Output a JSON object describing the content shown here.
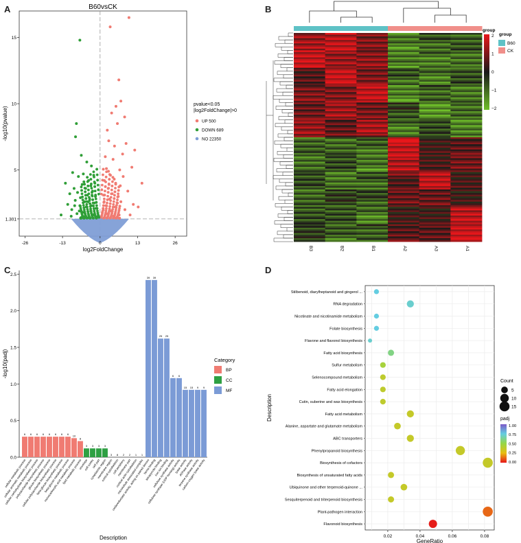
{
  "panels": {
    "A": {
      "letter": "A"
    },
    "B": {
      "letter": "B"
    },
    "C": {
      "letter": "C"
    },
    "D": {
      "letter": "D"
    }
  },
  "chart_data": [
    {
      "type": "scatter",
      "panel": "A",
      "title": "B60vsCK",
      "xlabel": "log2FoldChange",
      "ylabel": "-log10(pvalue)",
      "xlim": [
        -28,
        30
      ],
      "ylim": [
        0,
        17
      ],
      "xticks": [
        "-26",
        "-13",
        "0",
        "13",
        "26"
      ],
      "yticks": [
        "1.301",
        "5",
        "10",
        "15"
      ],
      "threshold_line_y": 1.301,
      "threshold_line_x": 0,
      "legend": {
        "title_line1": "pvalue<0.05",
        "title_line2": "|log2FoldChange|>0",
        "entries": [
          {
            "label": "UP 500",
            "color": "#f07b72"
          },
          {
            "label": "DOWN 689",
            "color": "#2f9e37"
          },
          {
            "label": "NO 22350",
            "color": "#7f9ed6"
          }
        ]
      },
      "series": [
        {
          "name": "UP 500",
          "color": "#f07b72",
          "points": [
            [
              3.5,
              15.8
            ],
            [
              10,
              16.5
            ],
            [
              6.5,
              11.8
            ],
            [
              5.5,
              9.8
            ],
            [
              7.2,
              10.2
            ],
            [
              8.5,
              9.0
            ],
            [
              4.0,
              9.3
            ],
            [
              6.0,
              8.5
            ],
            [
              2.5,
              8.0
            ],
            [
              3.0,
              7.2
            ],
            [
              9.0,
              7.0
            ],
            [
              12.0,
              6.5
            ],
            [
              5.0,
              6.8
            ],
            [
              7.8,
              6.2
            ],
            [
              1.8,
              6.0
            ],
            [
              4.5,
              5.8
            ],
            [
              11.0,
              5.2
            ],
            [
              6.8,
              5.0
            ],
            [
              2.2,
              5.1
            ],
            [
              3.6,
              4.6
            ],
            [
              8.0,
              4.5
            ],
            [
              14.5,
              4.0
            ],
            [
              1.5,
              4.2
            ],
            [
              5.4,
              4.0
            ],
            [
              2.8,
              3.6
            ],
            [
              9.6,
              3.4
            ],
            [
              4.2,
              3.2
            ],
            [
              6.3,
              3.0
            ],
            [
              1.2,
              3.1
            ],
            [
              3.3,
              2.8
            ],
            [
              7.2,
              2.6
            ],
            [
              11.5,
              2.4
            ],
            [
              2.0,
              2.3
            ],
            [
              5.2,
              2.2
            ],
            [
              1.1,
              2.0
            ],
            [
              8.6,
              2.0
            ],
            [
              3.7,
              1.9
            ],
            [
              2.4,
              1.7
            ],
            [
              6.6,
              1.6
            ],
            [
              4.7,
              1.5
            ],
            [
              1.6,
              1.45
            ],
            [
              10.4,
              1.6
            ],
            [
              13.2,
              2.2
            ],
            [
              0.8,
              1.8
            ],
            [
              2.9,
              4.9
            ],
            [
              4.9,
              4.3
            ],
            [
              7.0,
              3.8
            ],
            [
              3.1,
              3.9
            ],
            [
              1.4,
              2.6
            ],
            [
              6.0,
              2.5
            ]
          ]
        },
        {
          "name": "DOWN 689",
          "color": "#2f9e37",
          "points": [
            [
              -7,
              14.8
            ],
            [
              -8.2,
              8.5
            ],
            [
              -8.5,
              7.5
            ],
            [
              -6.5,
              6.1
            ],
            [
              -4.6,
              5.6
            ],
            [
              -3.0,
              5.3
            ],
            [
              -9.5,
              4.8
            ],
            [
              -5.8,
              4.7
            ],
            [
              -2.2,
              4.6
            ],
            [
              -7.5,
              4.5
            ],
            [
              -4.0,
              4.2
            ],
            [
              -12,
              4.0
            ],
            [
              -1.8,
              4.0
            ],
            [
              -6.2,
              3.9
            ],
            [
              -3.2,
              3.8
            ],
            [
              -9.0,
              3.6
            ],
            [
              -5.0,
              3.6
            ],
            [
              -2.6,
              3.4
            ],
            [
              -7.8,
              3.3
            ],
            [
              -10.5,
              3.2
            ],
            [
              -4.4,
              3.1
            ],
            [
              -1.6,
              3.0
            ],
            [
              -6.8,
              2.9
            ],
            [
              -3.6,
              2.8
            ],
            [
              -8.6,
              2.7
            ],
            [
              -5.4,
              2.6
            ],
            [
              -2.0,
              2.5
            ],
            [
              -11.2,
              2.4
            ],
            [
              -7.0,
              2.3
            ],
            [
              -4.8,
              2.2
            ],
            [
              -1.4,
              2.1
            ],
            [
              -9.8,
              2.0
            ],
            [
              -3.2,
              1.9
            ],
            [
              -6.0,
              1.8
            ],
            [
              -8.0,
              1.7
            ],
            [
              -2.4,
              1.6
            ],
            [
              -5.2,
              1.5
            ],
            [
              -13.5,
              1.6
            ],
            [
              -1.2,
              1.45
            ],
            [
              -4.0,
              1.4
            ],
            [
              -6.6,
              1.4
            ],
            [
              -10.0,
              1.5
            ],
            [
              -3.0,
              2.3
            ],
            [
              -7.2,
              1.9
            ],
            [
              -2.8,
              3.1
            ],
            [
              -5.6,
              4.1
            ],
            [
              -4.2,
              2.6
            ],
            [
              -8.8,
              2.3
            ]
          ]
        }
      ],
      "no_cloud": {
        "name": "NO 22350",
        "color": "#7f9ed6",
        "x_range": [
          -10,
          10
        ],
        "y_max": 1.301
      }
    },
    {
      "type": "heatmap",
      "panel": "B",
      "columns": [
        "B3",
        "B2",
        "B1",
        "A2",
        "A3",
        "A1"
      ],
      "column_groups": [
        "B60",
        "B60",
        "B60",
        "CK",
        "CK",
        "CK"
      ],
      "group_colors": {
        "B60": "#5ec2c6",
        "CK": "#f08f8a"
      },
      "legend_group_title": "group",
      "legend_groups": [
        "B60",
        "CK"
      ],
      "colorbar": {
        "ticks": [
          "2",
          "1",
          "0",
          "−1",
          "−2"
        ],
        "range": [
          -2,
          2
        ],
        "low": "#6fbf2a",
        "mid": "#1a1a1a",
        "high": "#e8171b"
      },
      "row_blocks": [
        {
          "weight": 2,
          "values": [
            1.4,
            1.6,
            0.9,
            -1.2,
            -0.8,
            -0.6
          ]
        },
        {
          "weight": 2,
          "values": [
            1.8,
            1.2,
            1.0,
            -1.3,
            -1.0,
            -0.9
          ]
        },
        {
          "weight": 2,
          "values": [
            0.6,
            1.7,
            0.8,
            -0.8,
            -1.1,
            -0.5
          ]
        },
        {
          "weight": 2,
          "values": [
            1.0,
            0.9,
            1.5,
            -1.4,
            -0.7,
            -1.0
          ]
        },
        {
          "weight": 2,
          "values": [
            0.8,
            1.2,
            0.7,
            -0.5,
            -1.3,
            -0.9
          ]
        },
        {
          "weight": 2,
          "values": [
            1.2,
            0.6,
            1.2,
            -1.0,
            -0.4,
            -1.2
          ]
        },
        {
          "weight": 2,
          "values": [
            -0.8,
            -1.0,
            -0.9,
            1.8,
            0.4,
            0.6
          ]
        },
        {
          "weight": 2,
          "values": [
            -1.0,
            -0.7,
            -1.2,
            1.6,
            0.5,
            0.8
          ]
        },
        {
          "weight": 2,
          "values": [
            -0.6,
            -1.2,
            -0.8,
            0.6,
            1.7,
            0.3
          ]
        },
        {
          "weight": 2,
          "values": [
            -0.9,
            -0.5,
            -0.7,
            0.9,
            0.8,
            0.2
          ]
        },
        {
          "weight": 2,
          "values": [
            -0.7,
            -0.8,
            -1.1,
            0.4,
            0.3,
            1.5
          ]
        },
        {
          "weight": 2,
          "values": [
            -0.5,
            -0.9,
            -0.6,
            0.7,
            0.6,
            1.7
          ]
        }
      ]
    },
    {
      "type": "bar",
      "panel": "C",
      "xlabel": "Description",
      "ylabel": "-log10(padj)",
      "ylim": [
        0,
        2.55
      ],
      "yticks": [
        "0.0",
        "0.5",
        "1.0",
        "1.5",
        "2.0",
        "2.5"
      ],
      "legend": {
        "title": "Category",
        "entries": [
          {
            "label": "BP",
            "color": "#f07b72"
          },
          {
            "label": "CC",
            "color": "#2ea043"
          },
          {
            "label": "MF",
            "color": "#7b9bd6"
          }
        ]
      },
      "bars": [
        {
          "label": "cellular metabolic process",
          "value": 0.28,
          "count": "6",
          "category": "BP"
        },
        {
          "label": "cellular aromatic metabolic process",
          "value": 0.28,
          "count": "6",
          "category": "BP"
        },
        {
          "label": "cellular carbohydrate biosynthetic process",
          "value": 0.28,
          "count": "6",
          "category": "BP"
        },
        {
          "label": "polysaccharide biosynthetic process",
          "value": 0.28,
          "count": "6",
          "category": "BP"
        },
        {
          "label": "glucan biosynthetic process",
          "value": 0.28,
          "count": "6",
          "category": "BP"
        },
        {
          "label": "cellular polysaccharide biosynthetic process",
          "value": 0.28,
          "count": "6",
          "category": "BP"
        },
        {
          "label": "beta-glucan biosynthetic process",
          "value": 0.28,
          "count": "6",
          "category": "BP"
        },
        {
          "label": "beta-glucan metabolic process",
          "value": 0.28,
          "count": "6",
          "category": "BP"
        },
        {
          "label": "monocarboxylic acid metabolic process",
          "value": 0.26,
          "count": "10",
          "category": "BP"
        },
        {
          "label": "lipid metabolic process",
          "value": 0.22,
          "count": "8",
          "category": "BP"
        },
        {
          "label": "envelope",
          "value": 0.12,
          "count": "3",
          "category": "CC"
        },
        {
          "label": "cell cortex",
          "value": 0.12,
          "count": "3",
          "category": "CC"
        },
        {
          "label": "cell part",
          "value": 0.12,
          "count": "3",
          "category": "CC"
        },
        {
          "label": "cytoplasmic region",
          "value": 0.12,
          "count": "3",
          "category": "CC"
        },
        {
          "label": "membrane region",
          "value": 0.0,
          "count": "3",
          "category": "CC"
        },
        {
          "label": "cortical cytoskeleton",
          "value": 0.0,
          "count": "8",
          "category": "CC"
        },
        {
          "label": "cell periphery",
          "value": 0.0,
          "count": "2",
          "category": "CC"
        },
        {
          "label": "membrane part",
          "value": 0.0,
          "count": "2",
          "category": "CC"
        },
        {
          "label": "cortical actin cytoskeleton",
          "value": 0.0,
          "count": "1",
          "category": "CC"
        },
        {
          "label": "microtubule associated complex",
          "value": 0.0,
          "count": "1",
          "category": "CC"
        },
        {
          "label": "oxidoreductase activity, acting on paired donors",
          "value": 2.42,
          "count": "39",
          "category": "MF"
        },
        {
          "label": "heme binding",
          "value": 2.42,
          "count": "39",
          "category": "MF"
        },
        {
          "label": "tetrapyrrole binding",
          "value": 1.62,
          "count": "25",
          "category": "MF"
        },
        {
          "label": "iron ion binding",
          "value": 1.62,
          "count": "25",
          "category": "MF"
        },
        {
          "label": "cellulose synthase activity",
          "value": 1.08,
          "count": "6",
          "category": "MF"
        },
        {
          "label": "cellulose synthase (UDP-forming) activity",
          "value": 1.08,
          "count": "6",
          "category": "MF"
        },
        {
          "label": "lyase activity",
          "value": 0.92,
          "count": "15",
          "category": "MF"
        },
        {
          "label": "ATPase activity",
          "value": 0.92,
          "count": "15",
          "category": "MF"
        },
        {
          "label": "terpene synthase activity",
          "value": 0.92,
          "count": "9",
          "category": "MF"
        },
        {
          "label": "carbon-oxygen lyase activity",
          "value": 0.92,
          "count": "9",
          "category": "MF"
        }
      ]
    },
    {
      "type": "scatter",
      "panel": "D",
      "xlabel": "GeneRatio",
      "ylabel": "Description",
      "xlim": [
        0.006,
        0.086
      ],
      "xticks": [
        0.02,
        0.04,
        0.06,
        0.08
      ],
      "xtick_labels": [
        "0.02",
        "0.04",
        "0.06",
        "0.08"
      ],
      "legend": {
        "count_title": "Count",
        "count_entries": [
          {
            "label": "5",
            "value": 5
          },
          {
            "label": "10",
            "value": 10
          },
          {
            "label": "15",
            "value": 15
          }
        ],
        "padj_title": "padj",
        "padj_ticks": [
          "1.00",
          "0.75",
          "0.50",
          "0.25",
          "0.00"
        ]
      },
      "points": [
        {
          "term": "Stilbenoid, diarylheptanoid and gingerol ...",
          "gene_ratio": 0.013,
          "count": 2,
          "padj": 0.75
        },
        {
          "term": "RNA degradation",
          "gene_ratio": 0.034,
          "count": 6,
          "padj": 0.72
        },
        {
          "term": "Nicotinate and nicotinamide metabolism",
          "gene_ratio": 0.013,
          "count": 2,
          "padj": 0.75
        },
        {
          "term": "Folate biosynthesis",
          "gene_ratio": 0.013,
          "count": 2,
          "padj": 0.75
        },
        {
          "term": "Flavone and flavonol biosynthesis",
          "gene_ratio": 0.009,
          "count": 1,
          "padj": 0.72
        },
        {
          "term": "Fatty acid biosynthesis",
          "gene_ratio": 0.022,
          "count": 4,
          "padj": 0.6
        },
        {
          "term": "Sulfur metabolism",
          "gene_ratio": 0.017,
          "count": 3,
          "padj": 0.45
        },
        {
          "term": "Selenocompound metabolism",
          "gene_ratio": 0.017,
          "count": 3,
          "padj": 0.38
        },
        {
          "term": "Fatty acid elongation",
          "gene_ratio": 0.017,
          "count": 3,
          "padj": 0.38
        },
        {
          "term": "Cutin, suberine and wax biosynthesis",
          "gene_ratio": 0.017,
          "count": 3,
          "padj": 0.38
        },
        {
          "term": "Fatty acid metabolism",
          "gene_ratio": 0.034,
          "count": 6,
          "padj": 0.36
        },
        {
          "term": "Alanine, aspartate and glutamate metabolism",
          "gene_ratio": 0.026,
          "count": 5,
          "padj": 0.36
        },
        {
          "term": "ABC transporters",
          "gene_ratio": 0.034,
          "count": 6,
          "padj": 0.36
        },
        {
          "term": "Phenylpropanoid biosynthesis",
          "gene_ratio": 0.065,
          "count": 12,
          "padj": 0.36
        },
        {
          "term": "Biosynthesis of cofactors",
          "gene_ratio": 0.082,
          "count": 15,
          "padj": 0.36
        },
        {
          "term": "Biosynthesis of unsaturated fatty acids",
          "gene_ratio": 0.022,
          "count": 4,
          "padj": 0.36
        },
        {
          "term": "Ubiquinone and other terpenoid-quinone ...",
          "gene_ratio": 0.03,
          "count": 5,
          "padj": 0.36
        },
        {
          "term": "Sesquiterpenoid and triterpenoid biosynthesis",
          "gene_ratio": 0.022,
          "count": 4,
          "padj": 0.36
        },
        {
          "term": "Plant-pathogen interaction",
          "gene_ratio": 0.082,
          "count": 15,
          "padj": 0.12
        },
        {
          "term": "Flavonoid biosynthesis",
          "gene_ratio": 0.048,
          "count": 9,
          "padj": 0.01
        }
      ]
    }
  ]
}
